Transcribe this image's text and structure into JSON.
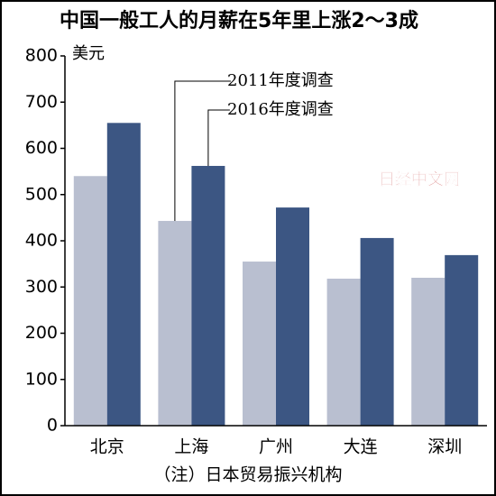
{
  "chart_data": {
    "type": "bar",
    "title": "中国一般工人的月薪在5年里上涨2～3成",
    "y_unit": "美元",
    "categories": [
      "北京",
      "上海",
      "广州",
      "大连",
      "深圳"
    ],
    "series": [
      {
        "name": "2011年度调查",
        "color": "#b9bfd0",
        "values": [
          540,
          443,
          355,
          318,
          320
        ]
      },
      {
        "name": "2016年度调查",
        "color": "#3c5683",
        "values": [
          655,
          562,
          472,
          406,
          369
        ]
      }
    ],
    "ylim": [
      0,
      800
    ],
    "yticks": [
      0,
      100,
      200,
      300,
      400,
      500,
      600,
      700,
      800
    ],
    "note": "（注）日本贸易振兴机构",
    "watermark": "日经中文网"
  }
}
